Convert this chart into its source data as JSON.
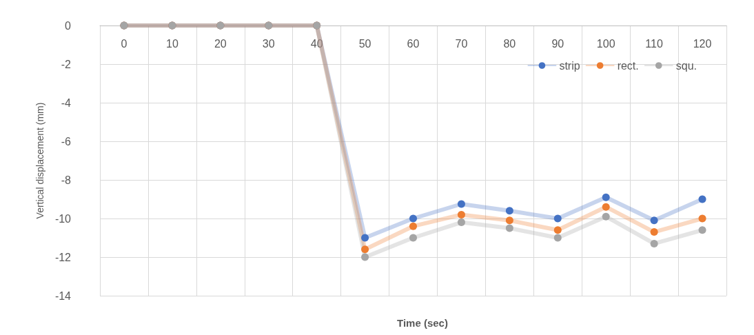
{
  "chart_data": {
    "type": "line",
    "xlabel": "Time (sec)",
    "ylabel": "Vertical displacement (mm)",
    "categories": [
      "0",
      "10",
      "20",
      "30",
      "40",
      "50",
      "60",
      "70",
      "80",
      "90",
      "100",
      "110",
      "120"
    ],
    "series": [
      {
        "name": "strip",
        "color": "#4472c4",
        "values": [
          0,
          0,
          0,
          0,
          0,
          -11,
          -10,
          -9.25,
          -9.6,
          -10,
          -8.9,
          -10.1,
          -9
        ]
      },
      {
        "name": "rect.",
        "color": "#ed7d31",
        "values": [
          0,
          0,
          0,
          0,
          0,
          -11.6,
          -10.4,
          -9.8,
          -10.1,
          -10.6,
          -9.4,
          -10.7,
          -10
        ]
      },
      {
        "name": "squ.",
        "color": "#a5a5a5",
        "values": [
          0,
          0,
          0,
          0,
          0,
          -12,
          -11,
          -10.2,
          -10.5,
          -11,
          -9.9,
          -11.3,
          -10.6
        ]
      }
    ],
    "ylim": [
      -14,
      0
    ],
    "yticks": [
      -14,
      -12,
      -10,
      -8,
      -6,
      -4,
      -2,
      0
    ],
    "grid": true,
    "legend": "top right",
    "marker": "circle",
    "line_style": "solid"
  }
}
